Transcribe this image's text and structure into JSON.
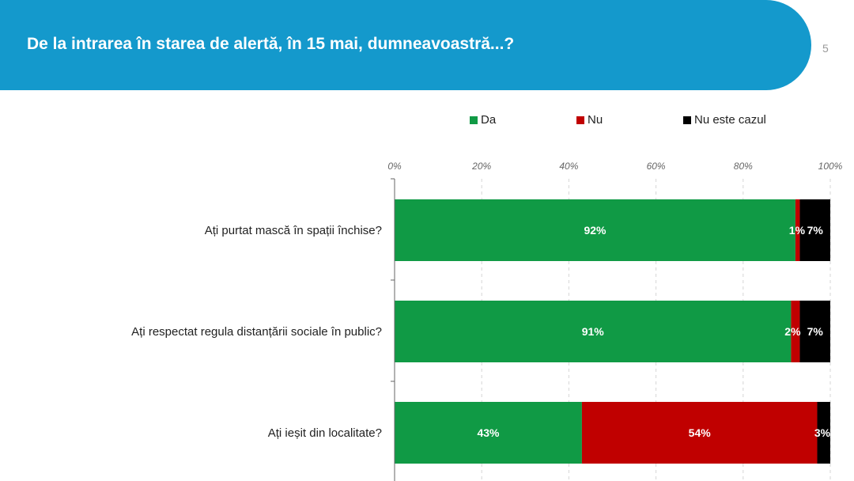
{
  "header": {
    "title": "De la intrarea în starea de alertă, în 15 mai, dumneavoastră...?",
    "page_number": "5"
  },
  "colors": {
    "banner": "#1499cc",
    "da": "#109a45",
    "nu": "#c00000",
    "nu_este_cazul": "#000000"
  },
  "chart_data": {
    "type": "bar",
    "orientation": "horizontal",
    "stacked": true,
    "title": "",
    "xlim": [
      0,
      100
    ],
    "x_ticks": [
      "0%",
      "20%",
      "40%",
      "60%",
      "80%",
      "100%"
    ],
    "legend_position": "top",
    "categories": [
      "Ați purtat mască în spații închise?",
      "Ați respectat regula distanțării sociale în public?",
      "Ați ieșit din localitate?"
    ],
    "series": [
      {
        "name": "Da",
        "color": "#109a45",
        "values": [
          92,
          91,
          43
        ],
        "labels": [
          "92%",
          "91%",
          "43%"
        ]
      },
      {
        "name": "Nu",
        "color": "#c00000",
        "values": [
          1,
          2,
          54
        ],
        "labels": [
          "1%",
          "2%",
          "54%"
        ]
      },
      {
        "name": "Nu este cazul",
        "color": "#000000",
        "values": [
          7,
          7,
          3
        ],
        "labels": [
          "7%",
          "7%",
          "3%"
        ]
      }
    ]
  }
}
